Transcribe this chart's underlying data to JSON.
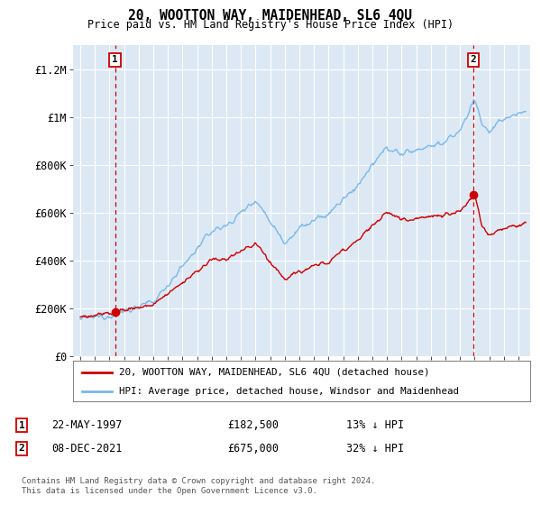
{
  "title1": "20, WOOTTON WAY, MAIDENHEAD, SL6 4QU",
  "title2": "Price paid vs. HM Land Registry's House Price Index (HPI)",
  "background_color": "#dce9f5",
  "hpi_color": "#7bb8e8",
  "price_color": "#cc0000",
  "ylim": [
    0,
    1300000
  ],
  "yticks": [
    0,
    200000,
    400000,
    600000,
    800000,
    1000000,
    1200000
  ],
  "ytick_labels": [
    "£0",
    "£200K",
    "£400K",
    "£600K",
    "£800K",
    "£1M",
    "£1.2M"
  ],
  "sale1_date": 1997.38,
  "sale1_price": 182500,
  "sale1_label": "1",
  "sale2_date": 2021.92,
  "sale2_price": 675000,
  "sale2_label": "2",
  "legend_line1": "20, WOOTTON WAY, MAIDENHEAD, SL6 4QU (detached house)",
  "legend_line2": "HPI: Average price, detached house, Windsor and Maidenhead",
  "annotation1_date": "22-MAY-1997",
  "annotation1_price": "£182,500",
  "annotation1_hpi": "13% ↓ HPI",
  "annotation2_date": "08-DEC-2021",
  "annotation2_price": "£675,000",
  "annotation2_hpi": "32% ↓ HPI",
  "footer": "Contains HM Land Registry data © Crown copyright and database right 2024.\nThis data is licensed under the Open Government Licence v3.0."
}
